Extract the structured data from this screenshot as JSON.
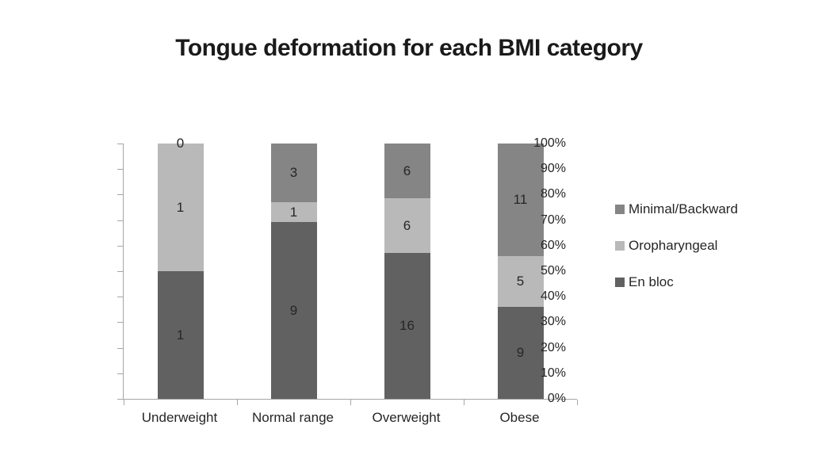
{
  "title": "Tongue deformation for each BMI category",
  "chart_data": {
    "type": "bar",
    "subtype": "stacked-100-percent-column",
    "title": "Tongue deformation for each BMI category",
    "categories": [
      "Underweight",
      "Normal range",
      "Overweight",
      "Obese"
    ],
    "series": [
      {
        "name": "En bloc",
        "color": "#616161",
        "values": [
          1,
          9,
          16,
          9
        ]
      },
      {
        "name": "Oropharyngeal",
        "color": "#b9b9b9",
        "values": [
          1,
          1,
          6,
          5
        ]
      },
      {
        "name": "Minimal/Backward",
        "color": "#858585",
        "values": [
          0,
          3,
          6,
          11
        ]
      }
    ],
    "stack_order_bottom_to_top": [
      "En bloc",
      "Oropharyngeal",
      "Minimal/Backward"
    ],
    "data_labels": true,
    "xlabel": "",
    "ylabel": "",
    "ylim": [
      0,
      100
    ],
    "y_ticks": [
      "100%",
      "90%",
      "80%",
      "70%",
      "60%",
      "50%",
      "40%",
      "30%",
      "20%",
      "10%",
      "0%"
    ],
    "grid": false,
    "legend_position": "right",
    "legend_order_top_to_bottom": [
      "Minimal/Backward",
      "Oropharyngeal",
      "En bloc"
    ]
  },
  "colors": {
    "background": "#ffffff",
    "axis": "#a6a6a6",
    "text": "#262626",
    "title": "#1a1a1a"
  }
}
